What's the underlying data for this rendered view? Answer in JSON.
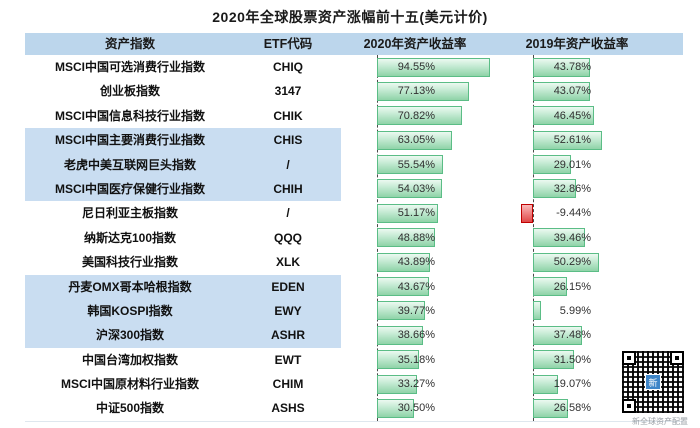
{
  "title": "2020年全球股票资产涨幅前十五(美元计价)",
  "columns": {
    "asset": "资产指数",
    "etf": "ETF代码",
    "y2020": "2020年资产收益率",
    "y2019": "2019年资产收益率"
  },
  "rows": [
    {
      "name": "MSCI中国可选消费行业指数",
      "code": "CHIQ",
      "r2020": 94.55,
      "r2020_label": "94.55%",
      "r2019": 43.78,
      "r2019_label": "43.78%",
      "banded": false
    },
    {
      "name": "创业板指数",
      "code": "3147",
      "r2020": 77.13,
      "r2020_label": "77.13%",
      "r2019": 43.07,
      "r2019_label": "43.07%",
      "banded": false
    },
    {
      "name": "MSCI中国信息科技行业指数",
      "code": "CHIK",
      "r2020": 70.82,
      "r2020_label": "70.82%",
      "r2019": 46.45,
      "r2019_label": "46.45%",
      "banded": false
    },
    {
      "name": "MSCI中国主要消费行业指数",
      "code": "CHIS",
      "r2020": 63.05,
      "r2020_label": "63.05%",
      "r2019": 52.61,
      "r2019_label": "52.61%",
      "banded": true
    },
    {
      "name": "老虎中美互联网巨头指数",
      "code": "/",
      "r2020": 55.54,
      "r2020_label": "55.54%",
      "r2019": 29.01,
      "r2019_label": "29.01%",
      "banded": true
    },
    {
      "name": "MSCI中国医疗保健行业指数",
      "code": "CHIH",
      "r2020": 54.03,
      "r2020_label": "54.03%",
      "r2019": 32.86,
      "r2019_label": "32.86%",
      "banded": true
    },
    {
      "name": "尼日利亚主板指数",
      "code": "/",
      "r2020": 51.17,
      "r2020_label": "51.17%",
      "r2019": -9.44,
      "r2019_label": "-9.44%",
      "banded": false
    },
    {
      "name": "纳斯达克100指数",
      "code": "QQQ",
      "r2020": 48.88,
      "r2020_label": "48.88%",
      "r2019": 39.46,
      "r2019_label": "39.46%",
      "banded": false
    },
    {
      "name": "美国科技行业指数",
      "code": "XLK",
      "r2020": 43.89,
      "r2020_label": "43.89%",
      "r2019": 50.29,
      "r2019_label": "50.29%",
      "banded": false
    },
    {
      "name": "丹麦OMX哥本哈根指数",
      "code": "EDEN",
      "r2020": 43.67,
      "r2020_label": "43.67%",
      "r2019": 26.15,
      "r2019_label": "26.15%",
      "banded": true
    },
    {
      "name": "韩国KOSPI指数",
      "code": "EWY",
      "r2020": 39.77,
      "r2020_label": "39.77%",
      "r2019": 5.99,
      "r2019_label": "5.99%",
      "banded": true
    },
    {
      "name": "沪深300指数",
      "code": "ASHR",
      "r2020": 38.66,
      "r2020_label": "38.66%",
      "r2019": 37.48,
      "r2019_label": "37.48%",
      "banded": true
    },
    {
      "name": "中国台湾加权指数",
      "code": "EWT",
      "r2020": 35.18,
      "r2020_label": "35.18%",
      "r2019": 31.5,
      "r2019_label": "31.50%",
      "banded": false
    },
    {
      "name": "MSCI中国原材料行业指数",
      "code": "CHIM",
      "r2020": 33.27,
      "r2020_label": "33.27%",
      "r2019": 19.07,
      "r2019_label": "19.07%",
      "banded": false
    },
    {
      "name": "中证500指数",
      "code": "ASHS",
      "r2020": 30.5,
      "r2020_label": "30.50%",
      "r2019": 26.58,
      "r2019_label": "26.58%",
      "banded": false
    }
  ],
  "footer": {
    "qr_caption": "新全球资产配置"
  },
  "colors": {
    "header_bg": "#BCD6EC",
    "band_bg": "#C9DDF1",
    "bar_green_light": "#ECF9F1",
    "bar_green_dark": "#8FD3A8",
    "bar_green_border": "#5BBD86",
    "bar_red": "#E04848",
    "bar_red_border": "#C00000",
    "qr_logo_blue": "#3D85C8"
  },
  "chart_data": {
    "type": "table",
    "title": "2020年全球股票资产涨幅前十五(美元计价)",
    "columns": [
      "资产指数",
      "ETF代码",
      "2020年资产收益率",
      "2019年资产收益率"
    ],
    "categories": [
      "MSCI中国可选消费行业指数",
      "创业板指数",
      "MSCI中国信息科技行业指数",
      "MSCI中国主要消费行业指数",
      "老虎中美互联网巨头指数",
      "MSCI中国医疗保健行业指数",
      "尼日利亚主板指数",
      "纳斯达克100指数",
      "美国科技行业指数",
      "丹麦OMX哥本哈根指数",
      "韩国KOSPI指数",
      "沪深300指数",
      "中国台湾加权指数",
      "MSCI中国原材料行业指数",
      "中证500指数"
    ],
    "etf_codes": [
      "CHIQ",
      "3147",
      "CHIK",
      "CHIS",
      "/",
      "CHIH",
      "/",
      "QQQ",
      "XLK",
      "EDEN",
      "EWY",
      "ASHR",
      "EWT",
      "CHIM",
      "ASHS"
    ],
    "series": [
      {
        "name": "2020年资产收益率",
        "values": [
          94.55,
          77.13,
          70.82,
          63.05,
          55.54,
          54.03,
          51.17,
          48.88,
          43.89,
          43.67,
          39.77,
          38.66,
          35.18,
          33.27,
          30.5
        ]
      },
      {
        "name": "2019年资产收益率",
        "values": [
          43.78,
          43.07,
          46.45,
          52.61,
          29.01,
          32.86,
          -9.44,
          39.46,
          50.29,
          26.15,
          5.99,
          37.48,
          31.5,
          19.07,
          26.58
        ]
      }
    ],
    "unit": "%",
    "bar_style": "in-cell data bars, green positive, red negative"
  }
}
